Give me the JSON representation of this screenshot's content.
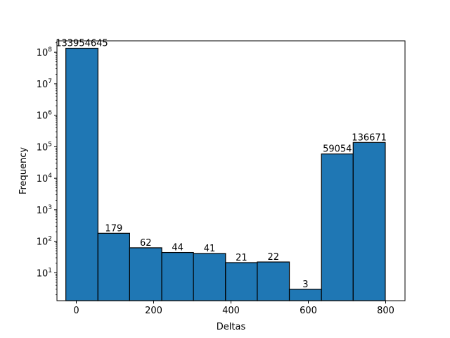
{
  "chart_data": {
    "type": "bar",
    "title": "",
    "xlabel": "Deltas",
    "ylabel": "Frequency",
    "y_scale": "log",
    "xlim": [
      -50,
      850
    ],
    "ylim": [
      1.3,
      230000000
    ],
    "x_ticks": [
      0,
      200,
      400,
      600,
      800
    ],
    "y_ticks": [
      1,
      2,
      3,
      4,
      5,
      6,
      7,
      8
    ],
    "bar_color": "#1f77b4",
    "edge_color": "#000000",
    "bins": [
      {
        "left": -27,
        "right": 56,
        "value": 133954645,
        "label": "133954645"
      },
      {
        "left": 56,
        "right": 138,
        "value": 179,
        "label": "179"
      },
      {
        "left": 138,
        "right": 221,
        "value": 62,
        "label": "62"
      },
      {
        "left": 221,
        "right": 303,
        "value": 44,
        "label": "44"
      },
      {
        "left": 303,
        "right": 386,
        "value": 41,
        "label": "41"
      },
      {
        "left": 386,
        "right": 468,
        "value": 21,
        "label": "21"
      },
      {
        "left": 468,
        "right": 551,
        "value": 22,
        "label": "22"
      },
      {
        "left": 551,
        "right": 634,
        "value": 3,
        "label": "3"
      },
      {
        "left": 634,
        "right": 716,
        "value": 59054,
        "label": "59054"
      },
      {
        "left": 716,
        "right": 799,
        "value": 136671,
        "label": "136671"
      }
    ]
  }
}
